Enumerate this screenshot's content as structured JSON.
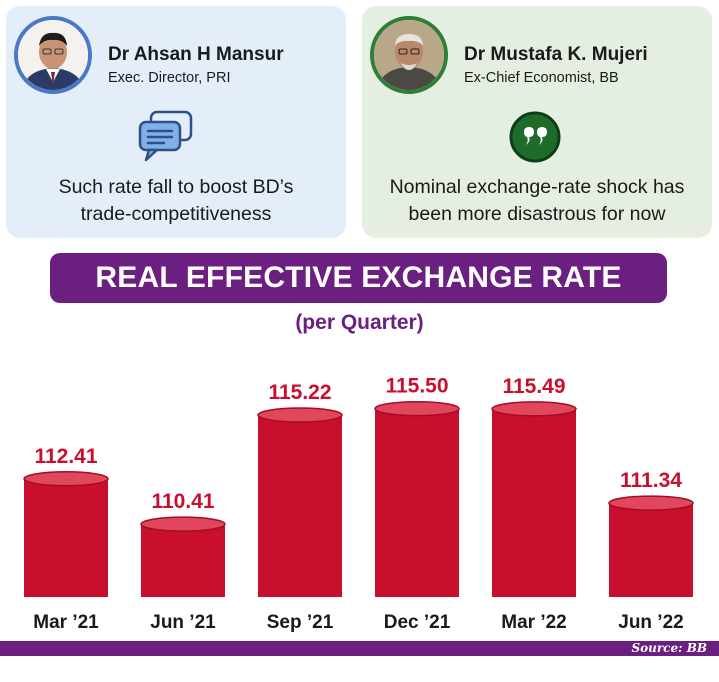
{
  "cards": [
    {
      "name": "Dr Ahsan H Mansur",
      "title": "Exec. Director, PRI",
      "icon": "speech-bubble-icon",
      "quote_lines": [
        "Such rate fall to boost BD’s",
        "trade-competitiveness"
      ],
      "accent": "#4a78c8"
    },
    {
      "name": "Dr Mustafa K. Mujeri",
      "title": "Ex-Chief Economist, BB",
      "icon": "quote-mark-icon",
      "quote_lines": [
        "Nominal exchange-rate shock has",
        "been more disastrous for now"
      ],
      "accent": "#2f7d3a"
    }
  ],
  "chart_data": {
    "type": "bar",
    "title": "REAL EFFECTIVE EXCHANGE RATE",
    "subtitle": "(per Quarter)",
    "categories": [
      "Mar ’21",
      "Jun ’21",
      "Sep ’21",
      "Dec ’21",
      "Mar ’22",
      "Jun ’22"
    ],
    "values": [
      112.41,
      110.41,
      115.22,
      115.5,
      115.49,
      111.34
    ],
    "value_labels": [
      "112.41",
      "110.41",
      "115.22",
      "115.50",
      "115.49",
      "111.34"
    ],
    "bar_color": "#c8102e",
    "ylim": [
      107.2,
      116.5
    ],
    "grid": false
  },
  "source": "Source: BB",
  "colors": {
    "purple": "#6b1f80",
    "red": "#c8102e"
  }
}
